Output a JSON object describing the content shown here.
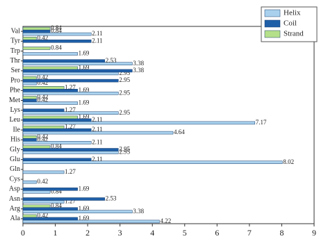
{
  "chart_data": {
    "type": "hbar",
    "categories": [
      "Ala",
      "Arg",
      "Asn",
      "Asp",
      "Cys",
      "Gln",
      "Glu",
      "Gly",
      "His",
      "Ile",
      "Leu",
      "Lys",
      "Met",
      "Phe",
      "Pro",
      "Ser",
      "Thr",
      "Trp",
      "Tyr",
      "Val"
    ],
    "series": [
      {
        "name": "Helix",
        "color": "#a9d1ee",
        "values": [
          4.22,
          3.38,
          1.27,
          0.84,
          0.42,
          1.27,
          8.02,
          2.95,
          2.11,
          4.64,
          7.17,
          2.95,
          1.69,
          2.95,
          0.42,
          2.95,
          3.38,
          1.69,
          null,
          2.11
        ]
      },
      {
        "name": "Coil",
        "color": "#1f5fa8",
        "values": [
          1.69,
          1.69,
          2.53,
          1.69,
          null,
          null,
          2.11,
          2.95,
          0.42,
          2.11,
          2.11,
          1.27,
          0.42,
          1.69,
          2.95,
          3.38,
          2.53,
          null,
          2.11,
          0.84
        ]
      },
      {
        "name": "Strand",
        "color": "#b5e08a",
        "values": [
          0.42,
          0.84,
          null,
          null,
          null,
          null,
          null,
          0.84,
          0.42,
          1.27,
          1.69,
          null,
          0.42,
          1.27,
          0.42,
          1.69,
          null,
          0.84,
          0.42,
          0.84
        ]
      }
    ],
    "xlim": [
      0,
      9
    ],
    "xticks": [
      0,
      1,
      2,
      3,
      4,
      5,
      6,
      7,
      8,
      9
    ],
    "legend": "upper right"
  }
}
